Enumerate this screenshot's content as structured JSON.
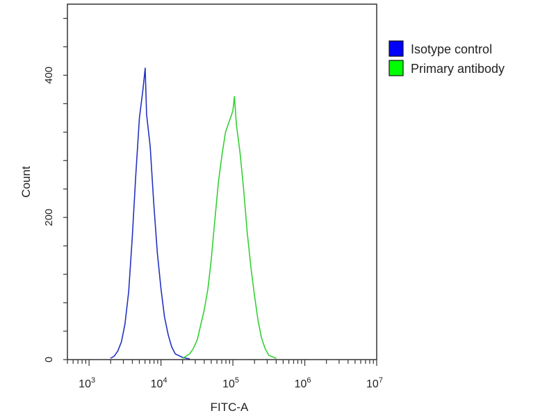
{
  "chart_data": {
    "type": "line",
    "title": "",
    "xlabel": "FITC-A",
    "ylabel": "Count",
    "x_scale": "log",
    "xlim": [
      500,
      10000000
    ],
    "ylim": [
      0,
      500
    ],
    "x_ticks": [
      {
        "base": "10",
        "exp": "3",
        "value": 1000
      },
      {
        "base": "10",
        "exp": "4",
        "value": 10000
      },
      {
        "base": "10",
        "exp": "5",
        "value": 100000
      },
      {
        "base": "10",
        "exp": "6",
        "value": 1000000
      },
      {
        "base": "10",
        "exp": "7",
        "value": 10000000
      }
    ],
    "y_ticks": [
      {
        "label": "0",
        "value": 0
      },
      {
        "label": "200",
        "value": 200
      },
      {
        "label": "400",
        "value": 400
      }
    ],
    "y_minor_step": 40,
    "grid": false,
    "legend_position": "right-outside-top",
    "series": [
      {
        "name": "Isotype control",
        "color": "#0000ff",
        "line_color": "#2232c0",
        "x": [
          2000,
          2240,
          2510,
          2820,
          3160,
          3550,
          3980,
          4470,
          5010,
          5620,
          6030,
          6310,
          7080,
          7940,
          8910,
          10000,
          11200,
          12600,
          14100,
          15800,
          20000,
          25000
        ],
        "y": [
          2,
          5,
          12,
          25,
          50,
          95,
          170,
          260,
          340,
          380,
          410,
          345,
          300,
          220,
          150,
          100,
          60,
          35,
          18,
          8,
          3,
          1
        ]
      },
      {
        "name": "Primary antibody",
        "color": "#00ff00",
        "line_color": "#33d033",
        "x": [
          20000,
          25000,
          28000,
          32000,
          35000,
          40000,
          45000,
          50000,
          56000,
          63000,
          71000,
          79000,
          89000,
          100000,
          105000,
          112000,
          126000,
          141000,
          158000,
          178000,
          200000,
          224000,
          251000,
          282000,
          316000,
          398000
        ],
        "y": [
          2,
          8,
          15,
          28,
          45,
          70,
          100,
          140,
          195,
          250,
          290,
          320,
          335,
          350,
          370,
          330,
          290,
          240,
          180,
          130,
          90,
          55,
          30,
          15,
          6,
          2
        ]
      }
    ]
  }
}
